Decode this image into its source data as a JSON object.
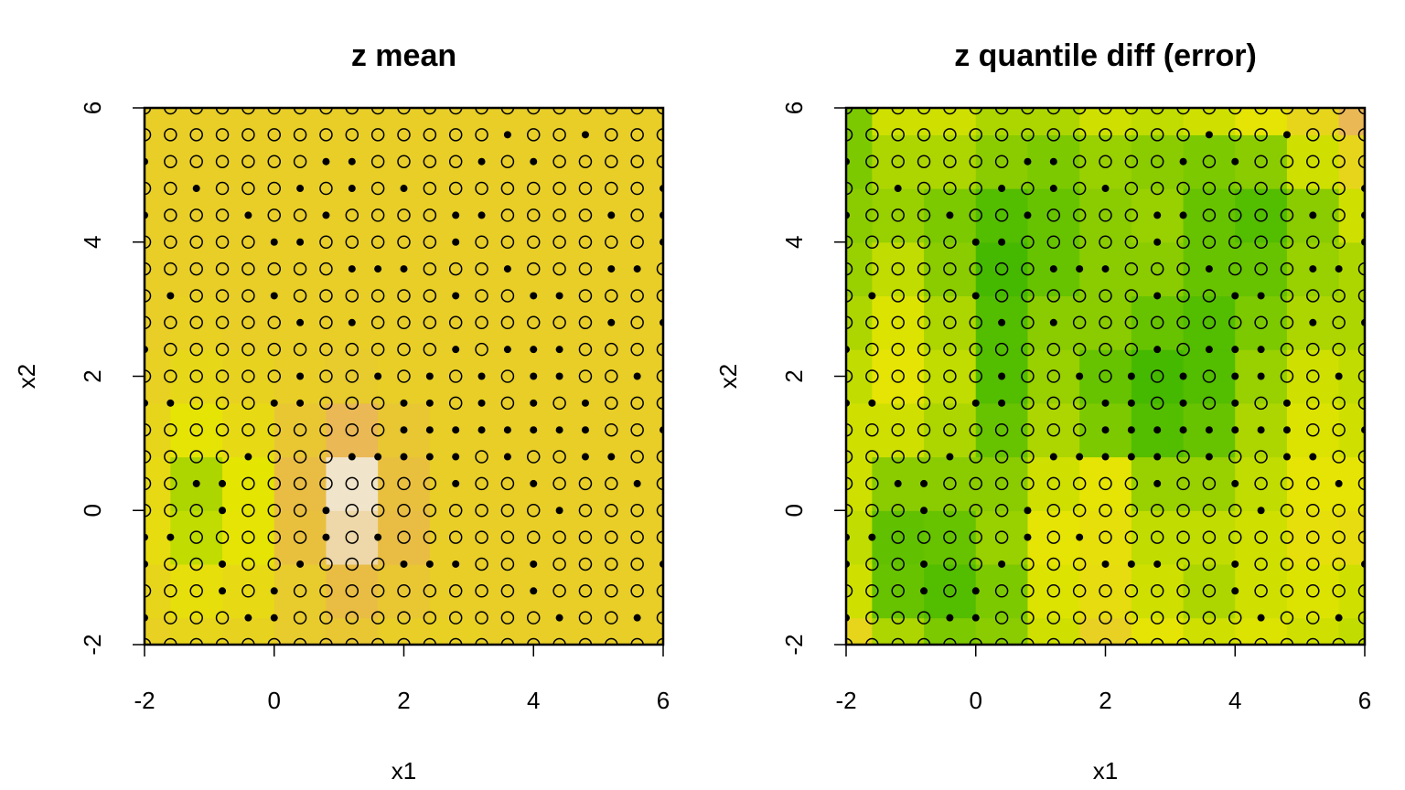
{
  "chart_data": [
    {
      "type": "heatmap",
      "title": "z mean",
      "xlabel": "x1",
      "ylabel": "x2",
      "xlim": [
        -2,
        6
      ],
      "ylim": [
        -2,
        6
      ],
      "xticks": [
        -2,
        0,
        2,
        4,
        6
      ],
      "yticks": [
        -2,
        0,
        2,
        4,
        6
      ],
      "colormap": [
        "#00a600",
        "#e6e600",
        "#eab64e",
        "#f2f2f2"
      ],
      "zlim": [
        0,
        1
      ],
      "heat_x": [
        -2,
        -1.2,
        -0.4,
        0.4,
        1.2,
        2,
        2.8,
        3.6,
        4.4,
        5.2,
        6
      ],
      "heat_y": [
        -2,
        -1.2,
        -0.4,
        0.4,
        1.2,
        2,
        2.8,
        3.6,
        4.4,
        5.2,
        6
      ],
      "heat_values": [
        [
          0.48,
          0.45,
          0.47,
          0.52,
          0.55,
          0.5,
          0.48,
          0.5,
          0.5,
          0.5,
          0.5
        ],
        [
          0.45,
          0.38,
          0.42,
          0.52,
          0.62,
          0.55,
          0.5,
          0.5,
          0.5,
          0.5,
          0.5
        ],
        [
          0.4,
          0.28,
          0.35,
          0.6,
          0.85,
          0.62,
          0.5,
          0.5,
          0.5,
          0.5,
          0.5
        ],
        [
          0.42,
          0.25,
          0.33,
          0.62,
          0.92,
          0.6,
          0.5,
          0.5,
          0.5,
          0.5,
          0.5
        ],
        [
          0.45,
          0.35,
          0.42,
          0.55,
          0.68,
          0.55,
          0.5,
          0.5,
          0.5,
          0.5,
          0.5
        ],
        [
          0.48,
          0.44,
          0.47,
          0.5,
          0.52,
          0.5,
          0.5,
          0.5,
          0.5,
          0.5,
          0.5
        ],
        [
          0.5,
          0.48,
          0.5,
          0.5,
          0.5,
          0.5,
          0.5,
          0.5,
          0.5,
          0.5,
          0.5
        ],
        [
          0.5,
          0.5,
          0.5,
          0.5,
          0.5,
          0.5,
          0.5,
          0.5,
          0.5,
          0.5,
          0.5
        ],
        [
          0.5,
          0.5,
          0.5,
          0.5,
          0.5,
          0.5,
          0.5,
          0.5,
          0.5,
          0.5,
          0.5
        ],
        [
          0.5,
          0.5,
          0.5,
          0.5,
          0.5,
          0.5,
          0.5,
          0.5,
          0.5,
          0.5,
          0.5
        ],
        [
          0.5,
          0.5,
          0.5,
          0.5,
          0.5,
          0.5,
          0.5,
          0.5,
          0.5,
          0.5,
          0.5
        ]
      ],
      "points_x": [
        -2,
        -1.6,
        -1.2,
        -0.8,
        -0.4,
        0,
        0.4,
        0.8,
        1.2,
        1.6,
        2,
        2.4,
        2.8,
        3.2,
        3.6,
        4,
        4.4,
        4.8,
        5.2,
        5.6,
        6
      ],
      "points_y": [
        -2,
        -1.6,
        -1.2,
        -0.8,
        -0.4,
        0,
        0.4,
        0.8,
        1.2,
        1.6,
        2,
        2.4,
        2.8,
        3.2,
        3.6,
        4,
        4.4,
        4.8,
        5.2,
        5.6,
        6
      ],
      "filled": [
        "000000000000000000000",
        "100011000000000010010",
        "000101000000000100000",
        "100100100011100100001",
        "110000010100000000000",
        "000100010000000010000",
        "001100000000100100010",
        "000010001111101001100",
        "000000000011111111001",
        "110001100011010101000",
        "000000100101010110010",
        "100000000000101110000",
        "000000101000000000101",
        "010001000000100110000",
        "000000001110001000110",
        "000001100000100000001",
        "100010010000110000101",
        "001000101010000000001",
        "100000011000010100000",
        "000000000000001001000",
        "000000000000000000000"
      ]
    },
    {
      "type": "heatmap",
      "title": "z quantile diff (error)",
      "xlabel": "x1",
      "ylabel": "x2",
      "xlim": [
        -2,
        6
      ],
      "ylim": [
        -2,
        6
      ],
      "xticks": [
        -2,
        0,
        2,
        4,
        6
      ],
      "yticks": [
        -2,
        0,
        2,
        4,
        6
      ],
      "colormap": [
        "#00a600",
        "#e6e600",
        "#eab64e",
        "#f2f2f2"
      ],
      "zlim": [
        0,
        1
      ],
      "heat_x": [
        -2,
        -1.2,
        -0.4,
        0.4,
        1.2,
        2,
        2.8,
        3.6,
        4.4,
        5.2,
        6
      ],
      "heat_y": [
        -2,
        -1.2,
        -0.4,
        0.4,
        1.2,
        2,
        2.8,
        3.6,
        4.4,
        5.2,
        6
      ],
      "heat_values": [
        [
          0.45,
          0.25,
          0.18,
          0.2,
          0.3,
          0.48,
          0.35,
          0.3,
          0.32,
          0.3,
          0.28
        ],
        [
          0.3,
          0.15,
          0.12,
          0.18,
          0.32,
          0.4,
          0.3,
          0.25,
          0.3,
          0.32,
          0.3
        ],
        [
          0.28,
          0.14,
          0.15,
          0.22,
          0.35,
          0.38,
          0.28,
          0.28,
          0.3,
          0.38,
          0.4
        ],
        [
          0.3,
          0.2,
          0.2,
          0.2,
          0.3,
          0.35,
          0.22,
          0.22,
          0.28,
          0.35,
          0.35
        ],
        [
          0.3,
          0.3,
          0.25,
          0.15,
          0.25,
          0.18,
          0.12,
          0.15,
          0.25,
          0.32,
          0.3
        ],
        [
          0.28,
          0.35,
          0.28,
          0.12,
          0.22,
          0.15,
          0.1,
          0.12,
          0.22,
          0.3,
          0.28
        ],
        [
          0.25,
          0.32,
          0.25,
          0.12,
          0.2,
          0.2,
          0.15,
          0.12,
          0.18,
          0.25,
          0.25
        ],
        [
          0.22,
          0.28,
          0.2,
          0.1,
          0.15,
          0.2,
          0.2,
          0.15,
          0.15,
          0.22,
          0.25
        ],
        [
          0.2,
          0.22,
          0.18,
          0.12,
          0.15,
          0.2,
          0.22,
          0.15,
          0.12,
          0.2,
          0.3
        ],
        [
          0.18,
          0.25,
          0.25,
          0.2,
          0.18,
          0.22,
          0.2,
          0.18,
          0.2,
          0.3,
          0.45
        ],
        [
          0.18,
          0.3,
          0.3,
          0.25,
          0.25,
          0.3,
          0.28,
          0.3,
          0.35,
          0.45,
          0.68
        ]
      ],
      "points_x": [
        -2,
        -1.6,
        -1.2,
        -0.8,
        -0.4,
        0,
        0.4,
        0.8,
        1.2,
        1.6,
        2,
        2.4,
        2.8,
        3.2,
        3.6,
        4,
        4.4,
        4.8,
        5.2,
        5.6,
        6
      ],
      "points_y": [
        -2,
        -1.6,
        -1.2,
        -0.8,
        -0.4,
        0,
        0.4,
        0.8,
        1.2,
        1.6,
        2,
        2.4,
        2.8,
        3.2,
        3.6,
        4,
        4.4,
        4.8,
        5.2,
        5.6,
        6
      ],
      "filled": [
        "000000000000000000000",
        "100011000000000010010",
        "000101000000000100000",
        "100100100011100100001",
        "110000010100000000000",
        "000100010000000010000",
        "001100000000100100010",
        "000010001111101001100",
        "000000000011111111001",
        "110001100011010101000",
        "000000100101010110010",
        "100000000000101110000",
        "000000101000000000101",
        "010001000000100110000",
        "000000001110001000110",
        "000001100000100000001",
        "100010010000110000101",
        "001000101010000000001",
        "100000011000010100000",
        "000000000000001001000",
        "000000000000000000000"
      ]
    }
  ]
}
